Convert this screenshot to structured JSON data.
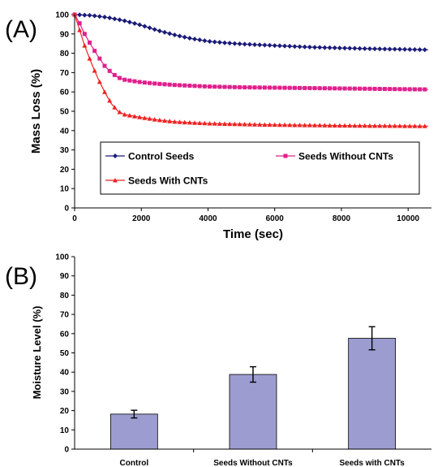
{
  "panel_a_label": "(A)",
  "panel_b_label": "(B)",
  "chart_data": [
    {
      "type": "line",
      "xlabel": "Time (sec)",
      "ylabel": "Mass Loss (%)",
      "xlim": [
        0,
        10700
      ],
      "ylim": [
        0,
        100
      ],
      "x_ticks": [
        0,
        2000,
        4000,
        6000,
        8000,
        10000
      ],
      "y_ticks": [
        0,
        10,
        20,
        30,
        40,
        50,
        60,
        70,
        80,
        90,
        100
      ],
      "grid": false,
      "legend": "inside-lower-center",
      "series": [
        {
          "name": "Control Seeds",
          "color": "#1b1b78",
          "marker": "diamond",
          "points": [
            [
              0,
              100
            ],
            [
              500,
              99.6
            ],
            [
              1000,
              98.5
            ],
            [
              1500,
              96.8
            ],
            [
              2000,
              94.5
            ],
            [
              2500,
              91.8
            ],
            [
              3000,
              89.5
            ],
            [
              3500,
              87.6
            ],
            [
              4000,
              86.2
            ],
            [
              4500,
              85.4
            ],
            [
              5000,
              84.8
            ],
            [
              6000,
              84.0
            ],
            [
              7000,
              83.2
            ],
            [
              8000,
              82.7
            ],
            [
              9000,
              82.3
            ],
            [
              10000,
              82.0
            ],
            [
              10600,
              81.8
            ]
          ]
        },
        {
          "name": "Seeds Without CNTs",
          "color": "#e0208c",
          "marker": "square",
          "points": [
            [
              0,
              100
            ],
            [
              150,
              95.5
            ],
            [
              300,
              90
            ],
            [
              500,
              84
            ],
            [
              700,
              78.5
            ],
            [
              900,
              73.5
            ],
            [
              1100,
              70
            ],
            [
              1300,
              67.5
            ],
            [
              1500,
              66.3
            ],
            [
              2000,
              65
            ],
            [
              2500,
              64.2
            ],
            [
              3000,
              63.6
            ],
            [
              4000,
              62.8
            ],
            [
              5000,
              62.4
            ],
            [
              6000,
              62.2
            ],
            [
              7000,
              62
            ],
            [
              8000,
              61.8
            ],
            [
              9000,
              61.6
            ],
            [
              10000,
              61.4
            ],
            [
              10600,
              61.3
            ]
          ]
        },
        {
          "name": "Seeds With CNTs",
          "color": "#ee2222",
          "marker": "triangle",
          "points": [
            [
              0,
              100
            ],
            [
              150,
              92
            ],
            [
              300,
              84
            ],
            [
              500,
              75
            ],
            [
              700,
              67
            ],
            [
              900,
              60
            ],
            [
              1100,
              54
            ],
            [
              1300,
              50
            ],
            [
              1500,
              48.3
            ],
            [
              2000,
              46.8
            ],
            [
              2500,
              45.5
            ],
            [
              3000,
              44.6
            ],
            [
              3500,
              44.1
            ],
            [
              4000,
              43.7
            ],
            [
              5000,
              43.3
            ],
            [
              6000,
              43
            ],
            [
              7000,
              42.8
            ],
            [
              8000,
              42.6
            ],
            [
              9000,
              42.5
            ],
            [
              10000,
              42.4
            ],
            [
              10600,
              42.3
            ]
          ]
        }
      ]
    },
    {
      "type": "bar",
      "ylabel": "Moisture Level (%)",
      "ylim": [
        0,
        100
      ],
      "y_ticks": [
        0,
        10,
        20,
        30,
        40,
        50,
        60,
        70,
        80,
        90,
        100
      ],
      "grid": false,
      "bar_color": "#9c9cd0",
      "categories": [
        "Control",
        "Seeds Without CNTs",
        "Seeds with CNTs"
      ],
      "values": [
        18.2,
        38.8,
        57.6
      ],
      "errors": [
        2,
        4,
        6
      ]
    }
  ]
}
